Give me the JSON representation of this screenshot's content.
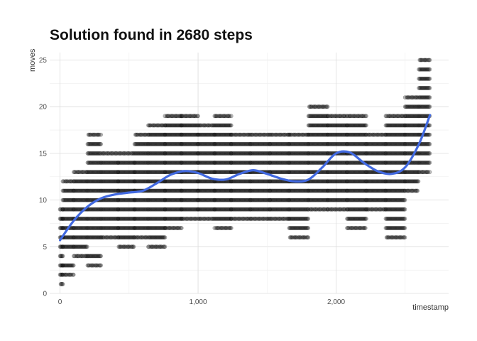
{
  "chart_data": {
    "type": "scatter",
    "title": "Solution found in 2680 steps",
    "xlabel": "timestamp",
    "ylabel": "moves",
    "xlim": [
      -75,
      2815
    ],
    "ylim": [
      0,
      25.8
    ],
    "x_ticks": [
      0,
      1000,
      2000
    ],
    "x_tick_labels": [
      "0",
      "1,000",
      "2,000"
    ],
    "y_ticks": [
      0,
      5,
      10,
      15,
      20,
      25
    ],
    "y_tick_labels": [
      "0",
      "5",
      "10",
      "15",
      "20",
      "25"
    ],
    "grid": true,
    "legend": "none",
    "point_color": "#000000",
    "point_opacity": 0.25,
    "trend_color": "#4169e1",
    "trend": {
      "x": [
        0,
        100,
        200,
        300,
        400,
        500,
        600,
        700,
        800,
        900,
        1000,
        1100,
        1200,
        1300,
        1400,
        1500,
        1600,
        1700,
        1800,
        1900,
        2000,
        2100,
        2200,
        2300,
        2400,
        2500,
        2600,
        2680
      ],
      "y": [
        5.7,
        7.8,
        9.3,
        10.2,
        10.6,
        10.8,
        11.0,
        11.8,
        12.7,
        13.1,
        12.9,
        12.3,
        12.2,
        12.8,
        13.2,
        12.8,
        12.3,
        12.0,
        12.2,
        13.5,
        15.0,
        15.1,
        14.0,
        13.1,
        12.8,
        13.5,
        16.0,
        19.1
      ]
    },
    "clusters": [
      {
        "x0": 0,
        "x1": 20,
        "y": [
          1,
          2,
          3,
          4,
          5,
          6,
          7,
          8,
          9
        ],
        "step": 5
      },
      {
        "x0": 20,
        "x1": 100,
        "y": [
          2,
          3,
          5,
          6,
          7,
          8,
          9,
          10,
          11,
          12
        ],
        "step": 6
      },
      {
        "x0": 100,
        "x1": 200,
        "y": [
          4,
          5,
          6,
          7,
          8,
          9,
          10,
          11,
          12,
          13
        ],
        "step": 6
      },
      {
        "x0": 200,
        "x1": 300,
        "y": [
          3,
          4,
          6,
          7,
          8,
          9,
          10,
          11,
          12,
          13,
          14,
          15,
          16,
          17
        ],
        "step": 6
      },
      {
        "x0": 300,
        "x1": 420,
        "y": [
          6,
          7,
          8,
          9,
          10,
          11,
          12,
          13,
          14,
          15
        ],
        "step": 6
      },
      {
        "x0": 420,
        "x1": 540,
        "y": [
          5,
          6,
          7,
          8,
          9,
          10,
          11,
          12,
          13,
          14,
          15
        ],
        "step": 6
      },
      {
        "x0": 540,
        "x1": 640,
        "y": [
          6,
          7,
          8,
          9,
          10,
          11,
          12,
          13,
          14,
          15,
          16,
          17
        ],
        "step": 6
      },
      {
        "x0": 640,
        "x1": 760,
        "y": [
          5,
          6,
          7,
          8,
          9,
          10,
          11,
          12,
          13,
          14,
          15,
          16,
          17,
          18
        ],
        "step": 6
      },
      {
        "x0": 760,
        "x1": 880,
        "y": [
          7,
          8,
          9,
          10,
          11,
          12,
          13,
          14,
          15,
          16,
          17,
          18,
          19
        ],
        "step": 6
      },
      {
        "x0": 880,
        "x1": 1000,
        "y": [
          8,
          9,
          10,
          11,
          12,
          13,
          14,
          15,
          16,
          17,
          18,
          19
        ],
        "step": 6
      },
      {
        "x0": 1000,
        "x1": 1120,
        "y": [
          8,
          9,
          10,
          11,
          12,
          13,
          14,
          15,
          16,
          17,
          18
        ],
        "step": 6
      },
      {
        "x0": 1120,
        "x1": 1240,
        "y": [
          7,
          8,
          9,
          10,
          11,
          12,
          13,
          14,
          15,
          16,
          17,
          18,
          19
        ],
        "step": 6
      },
      {
        "x0": 1240,
        "x1": 1380,
        "y": [
          8,
          9,
          10,
          11,
          12,
          13,
          14,
          15,
          16,
          17
        ],
        "step": 6
      },
      {
        "x0": 1380,
        "x1": 1520,
        "y": [
          8,
          9,
          10,
          11,
          12,
          13,
          14,
          15,
          16,
          17
        ],
        "step": 6
      },
      {
        "x0": 1520,
        "x1": 1660,
        "y": [
          8,
          9,
          10,
          11,
          12,
          13,
          14,
          15,
          16,
          17
        ],
        "step": 6
      },
      {
        "x0": 1660,
        "x1": 1800,
        "y": [
          6,
          7,
          8,
          9,
          10,
          11,
          12,
          13,
          14,
          15,
          16,
          17
        ],
        "step": 6
      },
      {
        "x0": 1800,
        "x1": 1940,
        "y": [
          9,
          10,
          11,
          12,
          13,
          14,
          15,
          16,
          17,
          18,
          19,
          20
        ],
        "step": 6
      },
      {
        "x0": 1940,
        "x1": 2080,
        "y": [
          9,
          10,
          11,
          12,
          13,
          14,
          15,
          16,
          17,
          18,
          19
        ],
        "step": 6
      },
      {
        "x0": 2080,
        "x1": 2220,
        "y": [
          7,
          8,
          9,
          10,
          11,
          12,
          13,
          14,
          15,
          16,
          17,
          18,
          19
        ],
        "step": 6
      },
      {
        "x0": 2220,
        "x1": 2360,
        "y": [
          9,
          10,
          11,
          12,
          13,
          14,
          15,
          16,
          17
        ],
        "step": 6
      },
      {
        "x0": 2360,
        "x1": 2500,
        "y": [
          6,
          7,
          8,
          9,
          10,
          11,
          12,
          13,
          14,
          15,
          16,
          17,
          18,
          19
        ],
        "step": 6
      },
      {
        "x0": 2500,
        "x1": 2600,
        "y": [
          11,
          12,
          13,
          14,
          15,
          16,
          17,
          18,
          19,
          20,
          21
        ],
        "step": 6
      },
      {
        "x0": 2600,
        "x1": 2680,
        "y": [
          13,
          14,
          15,
          16,
          17,
          18,
          19,
          20,
          21,
          22,
          23,
          24,
          25
        ],
        "step": 6
      }
    ]
  }
}
